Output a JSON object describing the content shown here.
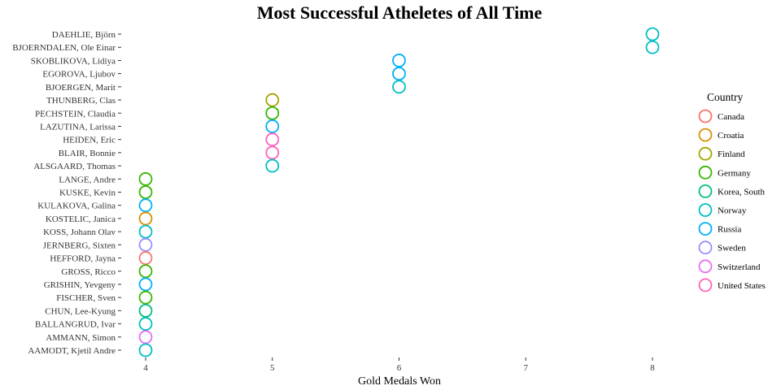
{
  "chart_data": {
    "type": "scatter",
    "title": "Most Successful Atheletes of All Time",
    "xlabel": "Gold Medals Won",
    "ylabel": "",
    "xlim": [
      3.93,
      8.0
    ],
    "xticks": [
      4,
      5,
      6,
      7,
      8
    ],
    "grid": false,
    "legend": {
      "title": "Country",
      "position": "right",
      "entries": [
        {
          "name": "Canada",
          "color": "#F8766D"
        },
        {
          "name": "Croatia",
          "color": "#D89000"
        },
        {
          "name": "Finland",
          "color": "#A3A500"
        },
        {
          "name": "Germany",
          "color": "#39B600"
        },
        {
          "name": "Korea, South",
          "color": "#00BF7D"
        },
        {
          "name": "Norway",
          "color": "#00BFC4"
        },
        {
          "name": "Russia",
          "color": "#00B0F6"
        },
        {
          "name": "Sweden",
          "color": "#9590FF"
        },
        {
          "name": "Switzerland",
          "color": "#E76BF3"
        },
        {
          "name": "United States",
          "color": "#FF62BC"
        }
      ]
    },
    "points": [
      {
        "athlete": "DAEHLIE, Björn",
        "medals": 8,
        "country": "Norway"
      },
      {
        "athlete": "BJOERNDALEN, Ole Einar",
        "medals": 8,
        "country": "Norway"
      },
      {
        "athlete": "SKOBLIKOVA, Lidiya",
        "medals": 6,
        "country": "Russia"
      },
      {
        "athlete": "EGOROVA, Ljubov",
        "medals": 6,
        "country": "Russia"
      },
      {
        "athlete": "BJOERGEN, Marit",
        "medals": 6,
        "country": "Norway"
      },
      {
        "athlete": "THUNBERG, Clas",
        "medals": 5,
        "country": "Finland"
      },
      {
        "athlete": "PECHSTEIN, Claudia",
        "medals": 5,
        "country": "Germany"
      },
      {
        "athlete": "LAZUTINA, Larissa",
        "medals": 5,
        "country": "Russia"
      },
      {
        "athlete": "HEIDEN, Eric",
        "medals": 5,
        "country": "United States"
      },
      {
        "athlete": "BLAIR, Bonnie",
        "medals": 5,
        "country": "United States"
      },
      {
        "athlete": "ALSGAARD, Thomas",
        "medals": 5,
        "country": "Norway"
      },
      {
        "athlete": "LANGE, Andre",
        "medals": 4,
        "country": "Germany"
      },
      {
        "athlete": "KUSKE, Kevin",
        "medals": 4,
        "country": "Germany"
      },
      {
        "athlete": "KULAKOVA, Galina",
        "medals": 4,
        "country": "Russia"
      },
      {
        "athlete": "KOSTELIC, Janica",
        "medals": 4,
        "country": "Croatia"
      },
      {
        "athlete": "KOSS, Johann Olav",
        "medals": 4,
        "country": "Norway"
      },
      {
        "athlete": "JERNBERG, Sixten",
        "medals": 4,
        "country": "Sweden"
      },
      {
        "athlete": "HEFFORD, Jayna",
        "medals": 4,
        "country": "Canada"
      },
      {
        "athlete": "GROSS, Ricco",
        "medals": 4,
        "country": "Germany"
      },
      {
        "athlete": "GRISHIN, Yevgeny",
        "medals": 4,
        "country": "Russia"
      },
      {
        "athlete": "FISCHER, Sven",
        "medals": 4,
        "country": "Germany"
      },
      {
        "athlete": "CHUN, Lee-Kyung",
        "medals": 4,
        "country": "Korea, South"
      },
      {
        "athlete": "BALLANGRUD, Ivar",
        "medals": 4,
        "country": "Norway"
      },
      {
        "athlete": "AMMANN, Simon",
        "medals": 4,
        "country": "Switzerland"
      },
      {
        "athlete": "AAMODT, Kjetil Andre",
        "medals": 4,
        "country": "Norway"
      }
    ]
  }
}
